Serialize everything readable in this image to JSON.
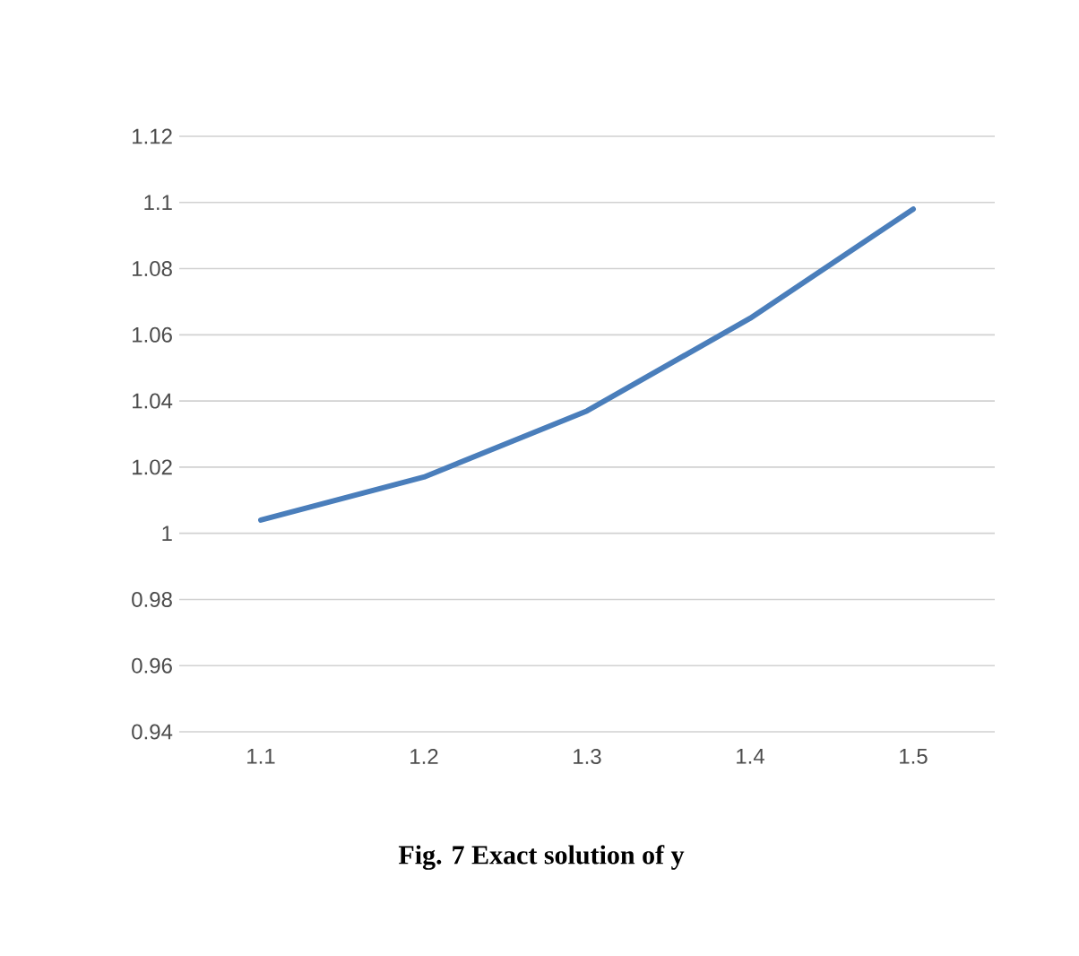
{
  "chart_data": {
    "type": "line",
    "title": "Fig. 7 Exact solution of y",
    "categories": [
      "1.1",
      "1.2",
      "1.3",
      "1.4",
      "1.5"
    ],
    "series": [
      {
        "color": "#4a7ebb",
        "values": [
          1.004,
          1.017,
          1.037,
          1.065,
          1.098
        ]
      }
    ],
    "ylim": [
      0.94,
      1.12
    ],
    "yticks": [
      0.94,
      0.96,
      0.98,
      1,
      1.02,
      1.04,
      1.06,
      1.08,
      1.1,
      1.12
    ],
    "grid": "y",
    "marker": "none",
    "line_style": "solid"
  }
}
